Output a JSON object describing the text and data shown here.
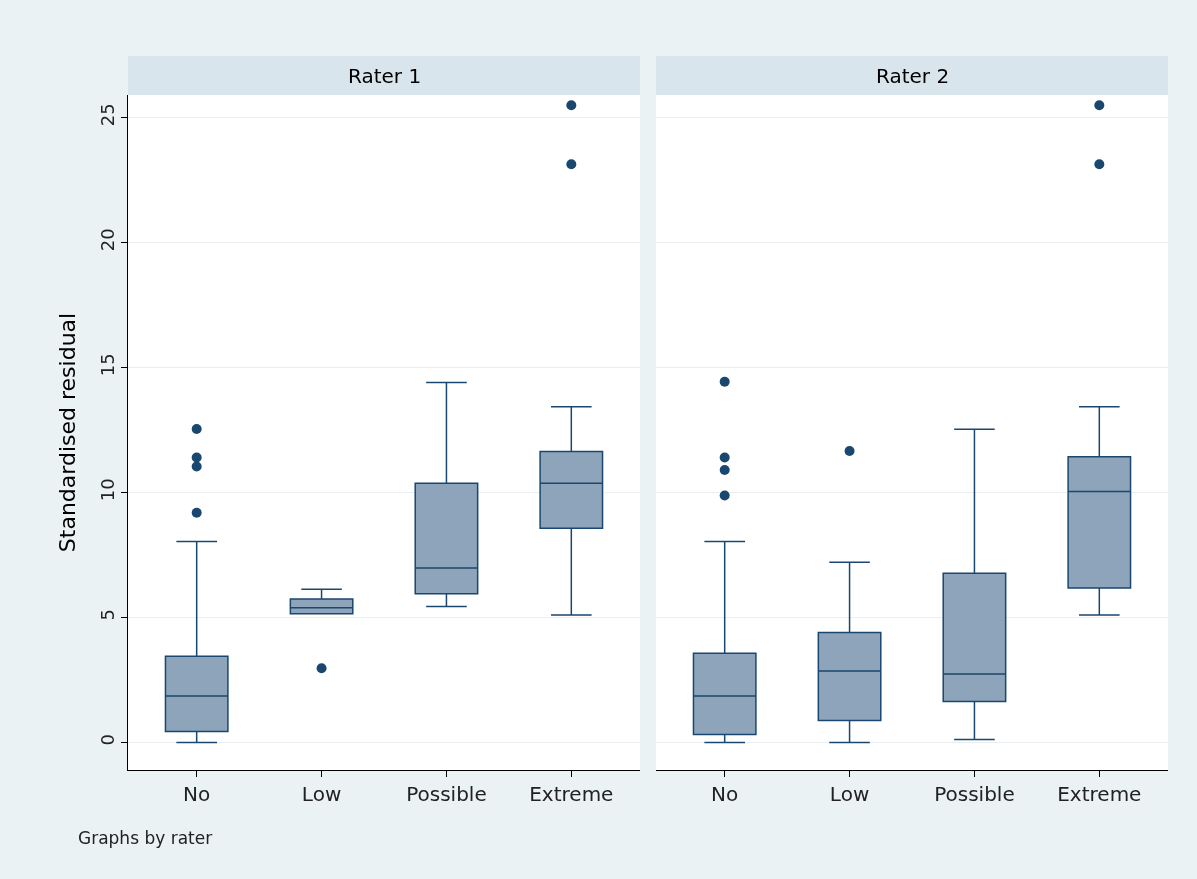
{
  "chart_data": [
    {
      "type": "box",
      "title": "Rater 1",
      "ylabel": "Standardised residual",
      "categories": [
        "No",
        "Low",
        "Possible",
        "Extreme"
      ],
      "color": "#8ea4bb",
      "ylim": [
        -1.1,
        25.9
      ],
      "yticks": [
        0,
        5,
        10,
        15,
        20,
        25
      ],
      "grid": "y",
      "annotations": [
        "Graphs by rater"
      ],
      "boxes": [
        {
          "low": 0,
          "q1": 0.44,
          "median": 1.86,
          "q3": 3.45,
          "high": 8.04,
          "outliers": [
            12.54,
            11.4,
            11.04,
            9.19
          ]
        },
        {
          "low": 5.15,
          "q1": 5.15,
          "median": 5.39,
          "q3": 5.74,
          "high": 6.13,
          "outliers": [
            2.97
          ]
        },
        {
          "low": 5.44,
          "q1": 5.95,
          "median": 6.98,
          "q3": 10.37,
          "high": 14.4
        },
        {
          "low": 5.1,
          "q1": 8.57,
          "median": 10.37,
          "q3": 11.64,
          "high": 13.43,
          "outliers": [
            25.49,
            23.13
          ]
        }
      ]
    },
    {
      "type": "box",
      "title": "Rater 2",
      "categories": [
        "No",
        "Low",
        "Possible",
        "Extreme"
      ],
      "color": "#8ea4bb",
      "ylim": [
        -1.1,
        25.9
      ],
      "yticks": [
        0,
        5,
        10,
        15,
        20,
        25
      ],
      "grid": "y",
      "tick_labels": "x",
      "boxes": [
        {
          "low": 0,
          "q1": 0.32,
          "median": 1.86,
          "q3": 3.57,
          "high": 8.04,
          "outliers": [
            14.43,
            11.4,
            10.9,
            9.88
          ]
        },
        {
          "low": 0,
          "q1": 0.88,
          "median": 2.86,
          "q3": 4.4,
          "high": 7.21,
          "outliers": [
            11.66
          ]
        },
        {
          "low": 0.12,
          "q1": 1.64,
          "median": 2.74,
          "q3": 6.77,
          "high": 12.53
        },
        {
          "low": 5.1,
          "q1": 6.18,
          "median": 10.04,
          "q3": 11.43,
          "high": 13.43,
          "outliers": [
            25.49,
            23.13
          ]
        }
      ]
    }
  ]
}
